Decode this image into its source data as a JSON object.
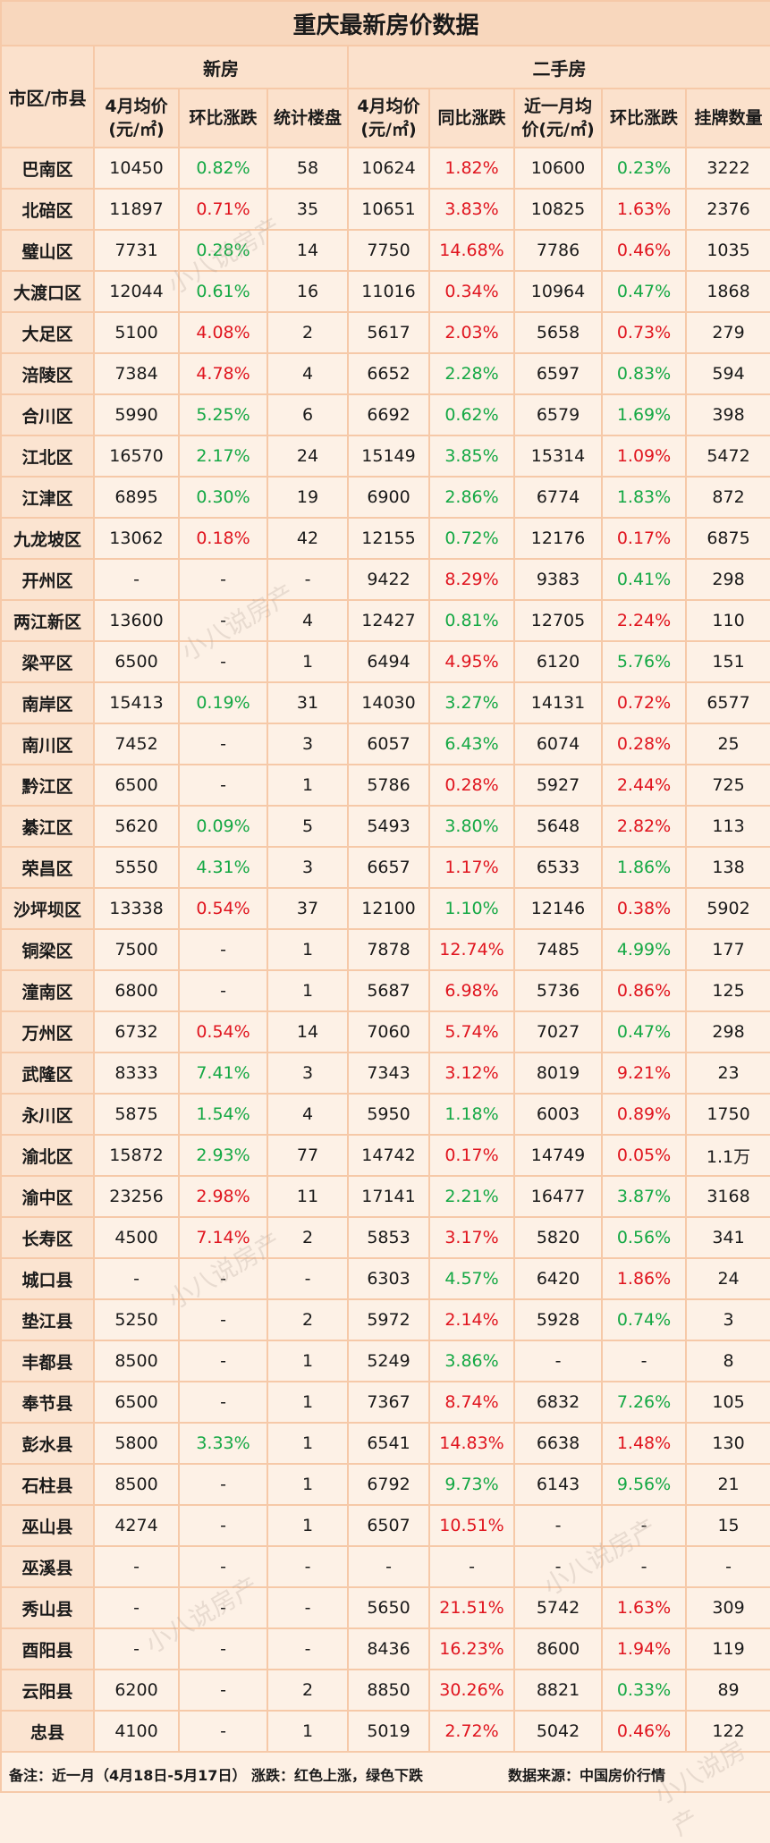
{
  "title": "重庆最新房价数据",
  "headers": {
    "region": "市区/市县",
    "new_house": "新房",
    "second_hand": "二手房",
    "new_avg_line1": "4月均价",
    "new_avg_line2": "(元/㎡)",
    "new_mom": "环比涨跌",
    "new_count": "统计楼盘",
    "sh_avg_line1": "4月均价",
    "sh_avg_line2": "(元/㎡)",
    "sh_yoy": "同比涨跌",
    "sh_recent_line1": "近一月均",
    "sh_recent_line2": "价(元/㎡)",
    "sh_mom": "环比涨跌",
    "sh_listings": "挂牌数量"
  },
  "colors": {
    "rise": "#e0141e",
    "fall": "#14a844"
  },
  "rows": [
    {
      "name": "巴南区",
      "new_price": "10450",
      "new_mom": "0.82%",
      "new_mom_dir": "down",
      "new_count": "58",
      "sh_price": "10624",
      "sh_yoy": "1.82%",
      "sh_yoy_dir": "up",
      "sh_recent": "10600",
      "sh_mom": "0.23%",
      "sh_mom_dir": "down",
      "listings": "3222"
    },
    {
      "name": "北碚区",
      "new_price": "11897",
      "new_mom": "0.71%",
      "new_mom_dir": "up",
      "new_count": "35",
      "sh_price": "10651",
      "sh_yoy": "3.83%",
      "sh_yoy_dir": "up",
      "sh_recent": "10825",
      "sh_mom": "1.63%",
      "sh_mom_dir": "up",
      "listings": "2376"
    },
    {
      "name": "璧山区",
      "new_price": "7731",
      "new_mom": "0.28%",
      "new_mom_dir": "down",
      "new_count": "14",
      "sh_price": "7750",
      "sh_yoy": "14.68%",
      "sh_yoy_dir": "up",
      "sh_recent": "7786",
      "sh_mom": "0.46%",
      "sh_mom_dir": "up",
      "listings": "1035"
    },
    {
      "name": "大渡口区",
      "new_price": "12044",
      "new_mom": "0.61%",
      "new_mom_dir": "down",
      "new_count": "16",
      "sh_price": "11016",
      "sh_yoy": "0.34%",
      "sh_yoy_dir": "up",
      "sh_recent": "10964",
      "sh_mom": "0.47%",
      "sh_mom_dir": "down",
      "listings": "1868"
    },
    {
      "name": "大足区",
      "new_price": "5100",
      "new_mom": "4.08%",
      "new_mom_dir": "up",
      "new_count": "2",
      "sh_price": "5617",
      "sh_yoy": "2.03%",
      "sh_yoy_dir": "up",
      "sh_recent": "5658",
      "sh_mom": "0.73%",
      "sh_mom_dir": "up",
      "listings": "279"
    },
    {
      "name": "涪陵区",
      "new_price": "7384",
      "new_mom": "4.78%",
      "new_mom_dir": "up",
      "new_count": "4",
      "sh_price": "6652",
      "sh_yoy": "2.28%",
      "sh_yoy_dir": "down",
      "sh_recent": "6597",
      "sh_mom": "0.83%",
      "sh_mom_dir": "down",
      "listings": "594"
    },
    {
      "name": "合川区",
      "new_price": "5990",
      "new_mom": "5.25%",
      "new_mom_dir": "down",
      "new_count": "6",
      "sh_price": "6692",
      "sh_yoy": "0.62%",
      "sh_yoy_dir": "down",
      "sh_recent": "6579",
      "sh_mom": "1.69%",
      "sh_mom_dir": "down",
      "listings": "398"
    },
    {
      "name": "江北区",
      "new_price": "16570",
      "new_mom": "2.17%",
      "new_mom_dir": "down",
      "new_count": "24",
      "sh_price": "15149",
      "sh_yoy": "3.85%",
      "sh_yoy_dir": "down",
      "sh_recent": "15314",
      "sh_mom": "1.09%",
      "sh_mom_dir": "up",
      "listings": "5472"
    },
    {
      "name": "江津区",
      "new_price": "6895",
      "new_mom": "0.30%",
      "new_mom_dir": "down",
      "new_count": "19",
      "sh_price": "6900",
      "sh_yoy": "2.86%",
      "sh_yoy_dir": "down",
      "sh_recent": "6774",
      "sh_mom": "1.83%",
      "sh_mom_dir": "down",
      "listings": "872"
    },
    {
      "name": "九龙坡区",
      "new_price": "13062",
      "new_mom": "0.18%",
      "new_mom_dir": "up",
      "new_count": "42",
      "sh_price": "12155",
      "sh_yoy": "0.72%",
      "sh_yoy_dir": "down",
      "sh_recent": "12176",
      "sh_mom": "0.17%",
      "sh_mom_dir": "up",
      "listings": "6875"
    },
    {
      "name": "开州区",
      "new_price": "-",
      "new_mom": "-",
      "new_mom_dir": "neutral",
      "new_count": "-",
      "sh_price": "9422",
      "sh_yoy": "8.29%",
      "sh_yoy_dir": "up",
      "sh_recent": "9383",
      "sh_mom": "0.41%",
      "sh_mom_dir": "down",
      "listings": "298"
    },
    {
      "name": "两江新区",
      "new_price": "13600",
      "new_mom": "-",
      "new_mom_dir": "neutral",
      "new_count": "4",
      "sh_price": "12427",
      "sh_yoy": "0.81%",
      "sh_yoy_dir": "down",
      "sh_recent": "12705",
      "sh_mom": "2.24%",
      "sh_mom_dir": "up",
      "listings": "110"
    },
    {
      "name": "梁平区",
      "new_price": "6500",
      "new_mom": "-",
      "new_mom_dir": "neutral",
      "new_count": "1",
      "sh_price": "6494",
      "sh_yoy": "4.95%",
      "sh_yoy_dir": "up",
      "sh_recent": "6120",
      "sh_mom": "5.76%",
      "sh_mom_dir": "down",
      "listings": "151"
    },
    {
      "name": "南岸区",
      "new_price": "15413",
      "new_mom": "0.19%",
      "new_mom_dir": "down",
      "new_count": "31",
      "sh_price": "14030",
      "sh_yoy": "3.27%",
      "sh_yoy_dir": "down",
      "sh_recent": "14131",
      "sh_mom": "0.72%",
      "sh_mom_dir": "up",
      "listings": "6577"
    },
    {
      "name": "南川区",
      "new_price": "7452",
      "new_mom": "-",
      "new_mom_dir": "neutral",
      "new_count": "3",
      "sh_price": "6057",
      "sh_yoy": "6.43%",
      "sh_yoy_dir": "down",
      "sh_recent": "6074",
      "sh_mom": "0.28%",
      "sh_mom_dir": "up",
      "listings": "25"
    },
    {
      "name": "黔江区",
      "new_price": "6500",
      "new_mom": "-",
      "new_mom_dir": "neutral",
      "new_count": "1",
      "sh_price": "5786",
      "sh_yoy": "0.28%",
      "sh_yoy_dir": "up",
      "sh_recent": "5927",
      "sh_mom": "2.44%",
      "sh_mom_dir": "up",
      "listings": "725"
    },
    {
      "name": "綦江区",
      "new_price": "5620",
      "new_mom": "0.09%",
      "new_mom_dir": "down",
      "new_count": "5",
      "sh_price": "5493",
      "sh_yoy": "3.80%",
      "sh_yoy_dir": "down",
      "sh_recent": "5648",
      "sh_mom": "2.82%",
      "sh_mom_dir": "up",
      "listings": "113"
    },
    {
      "name": "荣昌区",
      "new_price": "5550",
      "new_mom": "4.31%",
      "new_mom_dir": "down",
      "new_count": "3",
      "sh_price": "6657",
      "sh_yoy": "1.17%",
      "sh_yoy_dir": "up",
      "sh_recent": "6533",
      "sh_mom": "1.86%",
      "sh_mom_dir": "down",
      "listings": "138"
    },
    {
      "name": "沙坪坝区",
      "new_price": "13338",
      "new_mom": "0.54%",
      "new_mom_dir": "up",
      "new_count": "37",
      "sh_price": "12100",
      "sh_yoy": "1.10%",
      "sh_yoy_dir": "down",
      "sh_recent": "12146",
      "sh_mom": "0.38%",
      "sh_mom_dir": "up",
      "listings": "5902"
    },
    {
      "name": "铜梁区",
      "new_price": "7500",
      "new_mom": "-",
      "new_mom_dir": "neutral",
      "new_count": "1",
      "sh_price": "7878",
      "sh_yoy": "12.74%",
      "sh_yoy_dir": "up",
      "sh_recent": "7485",
      "sh_mom": "4.99%",
      "sh_mom_dir": "down",
      "listings": "177"
    },
    {
      "name": "潼南区",
      "new_price": "6800",
      "new_mom": "-",
      "new_mom_dir": "neutral",
      "new_count": "1",
      "sh_price": "5687",
      "sh_yoy": "6.98%",
      "sh_yoy_dir": "up",
      "sh_recent": "5736",
      "sh_mom": "0.86%",
      "sh_mom_dir": "up",
      "listings": "125"
    },
    {
      "name": "万州区",
      "new_price": "6732",
      "new_mom": "0.54%",
      "new_mom_dir": "up",
      "new_count": "14",
      "sh_price": "7060",
      "sh_yoy": "5.74%",
      "sh_yoy_dir": "up",
      "sh_recent": "7027",
      "sh_mom": "0.47%",
      "sh_mom_dir": "down",
      "listings": "298"
    },
    {
      "name": "武隆区",
      "new_price": "8333",
      "new_mom": "7.41%",
      "new_mom_dir": "down",
      "new_count": "3",
      "sh_price": "7343",
      "sh_yoy": "3.12%",
      "sh_yoy_dir": "up",
      "sh_recent": "8019",
      "sh_mom": "9.21%",
      "sh_mom_dir": "up",
      "listings": "23"
    },
    {
      "name": "永川区",
      "new_price": "5875",
      "new_mom": "1.54%",
      "new_mom_dir": "down",
      "new_count": "4",
      "sh_price": "5950",
      "sh_yoy": "1.18%",
      "sh_yoy_dir": "down",
      "sh_recent": "6003",
      "sh_mom": "0.89%",
      "sh_mom_dir": "up",
      "listings": "1750"
    },
    {
      "name": "渝北区",
      "new_price": "15872",
      "new_mom": "2.93%",
      "new_mom_dir": "down",
      "new_count": "77",
      "sh_price": "14742",
      "sh_yoy": "0.17%",
      "sh_yoy_dir": "up",
      "sh_recent": "14749",
      "sh_mom": "0.05%",
      "sh_mom_dir": "up",
      "listings": "1.1万"
    },
    {
      "name": "渝中区",
      "new_price": "23256",
      "new_mom": "2.98%",
      "new_mom_dir": "up",
      "new_count": "11",
      "sh_price": "17141",
      "sh_yoy": "2.21%",
      "sh_yoy_dir": "down",
      "sh_recent": "16477",
      "sh_mom": "3.87%",
      "sh_mom_dir": "down",
      "listings": "3168"
    },
    {
      "name": "长寿区",
      "new_price": "4500",
      "new_mom": "7.14%",
      "new_mom_dir": "up",
      "new_count": "2",
      "sh_price": "5853",
      "sh_yoy": "3.17%",
      "sh_yoy_dir": "up",
      "sh_recent": "5820",
      "sh_mom": "0.56%",
      "sh_mom_dir": "down",
      "listings": "341"
    },
    {
      "name": "城口县",
      "new_price": "-",
      "new_mom": "-",
      "new_mom_dir": "neutral",
      "new_count": "-",
      "sh_price": "6303",
      "sh_yoy": "4.57%",
      "sh_yoy_dir": "down",
      "sh_recent": "6420",
      "sh_mom": "1.86%",
      "sh_mom_dir": "up",
      "listings": "24"
    },
    {
      "name": "垫江县",
      "new_price": "5250",
      "new_mom": "-",
      "new_mom_dir": "neutral",
      "new_count": "2",
      "sh_price": "5972",
      "sh_yoy": "2.14%",
      "sh_yoy_dir": "up",
      "sh_recent": "5928",
      "sh_mom": "0.74%",
      "sh_mom_dir": "down",
      "listings": "3"
    },
    {
      "name": "丰都县",
      "new_price": "8500",
      "new_mom": "-",
      "new_mom_dir": "neutral",
      "new_count": "1",
      "sh_price": "5249",
      "sh_yoy": "3.86%",
      "sh_yoy_dir": "down",
      "sh_recent": "-",
      "sh_mom": "-",
      "sh_mom_dir": "neutral",
      "listings": "8"
    },
    {
      "name": "奉节县",
      "new_price": "6500",
      "new_mom": "-",
      "new_mom_dir": "neutral",
      "new_count": "1",
      "sh_price": "7367",
      "sh_yoy": "8.74%",
      "sh_yoy_dir": "up",
      "sh_recent": "6832",
      "sh_mom": "7.26%",
      "sh_mom_dir": "down",
      "listings": "105"
    },
    {
      "name": "彭水县",
      "new_price": "5800",
      "new_mom": "3.33%",
      "new_mom_dir": "down",
      "new_count": "1",
      "sh_price": "6541",
      "sh_yoy": "14.83%",
      "sh_yoy_dir": "up",
      "sh_recent": "6638",
      "sh_mom": "1.48%",
      "sh_mom_dir": "up",
      "listings": "130"
    },
    {
      "name": "石柱县",
      "new_price": "8500",
      "new_mom": "-",
      "new_mom_dir": "neutral",
      "new_count": "1",
      "sh_price": "6792",
      "sh_yoy": "9.73%",
      "sh_yoy_dir": "down",
      "sh_recent": "6143",
      "sh_mom": "9.56%",
      "sh_mom_dir": "down",
      "listings": "21"
    },
    {
      "name": "巫山县",
      "new_price": "4274",
      "new_mom": "-",
      "new_mom_dir": "neutral",
      "new_count": "1",
      "sh_price": "6507",
      "sh_yoy": "10.51%",
      "sh_yoy_dir": "up",
      "sh_recent": "-",
      "sh_mom": "-",
      "sh_mom_dir": "neutral",
      "listings": "15"
    },
    {
      "name": "巫溪县",
      "new_price": "-",
      "new_mom": "-",
      "new_mom_dir": "neutral",
      "new_count": "-",
      "sh_price": "-",
      "sh_yoy": "-",
      "sh_yoy_dir": "neutral",
      "sh_recent": "-",
      "sh_mom": "-",
      "sh_mom_dir": "neutral",
      "listings": "-"
    },
    {
      "name": "秀山县",
      "new_price": "-",
      "new_mom": "-",
      "new_mom_dir": "neutral",
      "new_count": "-",
      "sh_price": "5650",
      "sh_yoy": "21.51%",
      "sh_yoy_dir": "up",
      "sh_recent": "5742",
      "sh_mom": "1.63%",
      "sh_mom_dir": "up",
      "listings": "309"
    },
    {
      "name": "酉阳县",
      "new_price": "-",
      "new_mom": "-",
      "new_mom_dir": "neutral",
      "new_count": "-",
      "sh_price": "8436",
      "sh_yoy": "16.23%",
      "sh_yoy_dir": "up",
      "sh_recent": "8600",
      "sh_mom": "1.94%",
      "sh_mom_dir": "up",
      "listings": "119"
    },
    {
      "name": "云阳县",
      "new_price": "6200",
      "new_mom": "-",
      "new_mom_dir": "neutral",
      "new_count": "2",
      "sh_price": "8850",
      "sh_yoy": "30.26%",
      "sh_yoy_dir": "up",
      "sh_recent": "8821",
      "sh_mom": "0.33%",
      "sh_mom_dir": "down",
      "listings": "89"
    },
    {
      "name": "忠县",
      "new_price": "4100",
      "new_mom": "-",
      "new_mom_dir": "neutral",
      "new_count": "1",
      "sh_price": "5019",
      "sh_yoy": "2.72%",
      "sh_yoy_dir": "up",
      "sh_recent": "5042",
      "sh_mom": "0.46%",
      "sh_mom_dir": "up",
      "listings": "122"
    }
  ],
  "footer": {
    "note": "备注：近一月（4月18日-5月17日）  涨跌：红色上涨，绿色下跌",
    "source": "数据来源：中国房价行情"
  },
  "watermark": "小八说房产"
}
